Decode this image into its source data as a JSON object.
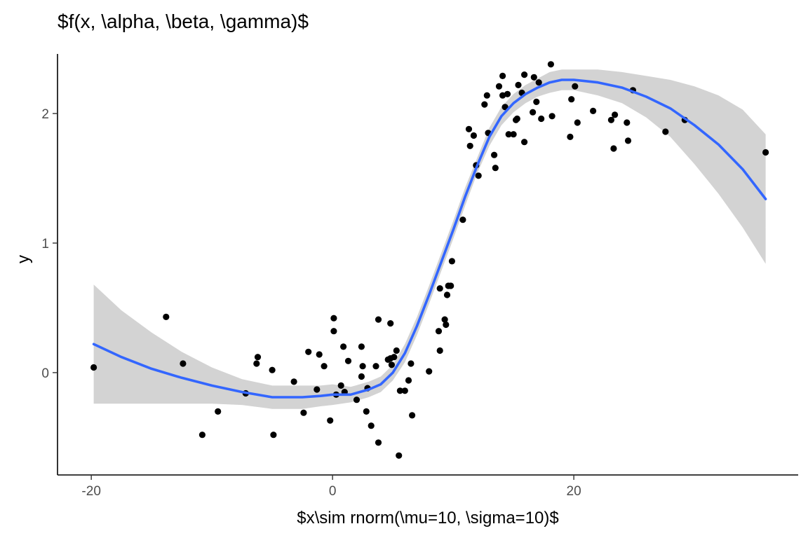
{
  "chart_data": {
    "type": "scatter",
    "title": "$f(x, \\alpha, \\beta, \\gamma)$",
    "xlabel": "$x\\sim rnorm(\\mu=10, \\sigma=10)$",
    "ylabel": "y",
    "xlim": [
      -22.8,
      38.6
    ],
    "ylim": [
      -0.79,
      2.46
    ],
    "x_ticks": [
      -20,
      0,
      20
    ],
    "y_ticks": [
      0,
      1,
      2
    ],
    "x_tick_labels": [
      "-20",
      "0",
      "20"
    ],
    "y_tick_labels": [
      "0",
      "1",
      "2"
    ],
    "grid": false,
    "legend": "none",
    "colors": {
      "points": "#000000",
      "smooth_line": "#3366FF",
      "confidence_band": "#D3D3D3",
      "axis": "#000000",
      "tick_text": "#4D4D4D"
    },
    "points": [
      [
        -19.8,
        0.04
      ],
      [
        -13.8,
        0.43
      ],
      [
        -12.4,
        0.07
      ],
      [
        -10.8,
        -0.48
      ],
      [
        -9.5,
        -0.3
      ],
      [
        -7.2,
        -0.16
      ],
      [
        -6.3,
        0.07
      ],
      [
        -6.2,
        0.12
      ],
      [
        -5.0,
        0.02
      ],
      [
        -4.9,
        -0.48
      ],
      [
        -3.2,
        -0.07
      ],
      [
        -2.4,
        -0.31
      ],
      [
        -2.0,
        0.16
      ],
      [
        -1.3,
        -0.13
      ],
      [
        -1.1,
        0.14
      ],
      [
        -0.7,
        0.05
      ],
      [
        -0.2,
        -0.37
      ],
      [
        0.1,
        0.32
      ],
      [
        0.1,
        0.42
      ],
      [
        0.3,
        -0.17
      ],
      [
        0.7,
        -0.1
      ],
      [
        0.9,
        0.2
      ],
      [
        1.0,
        -0.15
      ],
      [
        1.3,
        0.09
      ],
      [
        2.0,
        -0.21
      ],
      [
        2.4,
        0.2
      ],
      [
        2.4,
        -0.03
      ],
      [
        2.5,
        0.05
      ],
      [
        2.8,
        -0.3
      ],
      [
        2.9,
        -0.12
      ],
      [
        3.2,
        -0.41
      ],
      [
        3.6,
        0.05
      ],
      [
        3.8,
        -0.54
      ],
      [
        3.8,
        0.41
      ],
      [
        4.6,
        0.1
      ],
      [
        4.8,
        0.11
      ],
      [
        4.8,
        0.38
      ],
      [
        4.9,
        0.06
      ],
      [
        5.1,
        0.12
      ],
      [
        5.3,
        0.17
      ],
      [
        5.5,
        -0.64
      ],
      [
        5.6,
        -0.14
      ],
      [
        6.0,
        -0.14
      ],
      [
        6.3,
        -0.06
      ],
      [
        6.5,
        0.07
      ],
      [
        6.6,
        -0.33
      ],
      [
        8.0,
        0.01
      ],
      [
        8.8,
        0.32
      ],
      [
        8.9,
        0.17
      ],
      [
        8.9,
        0.65
      ],
      [
        9.3,
        0.41
      ],
      [
        9.4,
        0.37
      ],
      [
        9.5,
        0.6
      ],
      [
        9.6,
        0.67
      ],
      [
        9.8,
        0.67
      ],
      [
        9.9,
        0.86
      ],
      [
        10.8,
        1.18
      ],
      [
        11.3,
        1.88
      ],
      [
        11.4,
        1.75
      ],
      [
        11.7,
        1.83
      ],
      [
        11.9,
        1.6
      ],
      [
        12.1,
        1.52
      ],
      [
        12.6,
        2.07
      ],
      [
        12.8,
        2.14
      ],
      [
        12.9,
        1.85
      ],
      [
        13.4,
        1.68
      ],
      [
        13.5,
        1.58
      ],
      [
        13.8,
        2.21
      ],
      [
        14.1,
        2.14
      ],
      [
        14.1,
        2.29
      ],
      [
        14.3,
        2.05
      ],
      [
        14.5,
        2.15
      ],
      [
        14.6,
        1.84
      ],
      [
        15.0,
        1.84
      ],
      [
        15.2,
        1.95
      ],
      [
        15.3,
        1.96
      ],
      [
        15.4,
        2.22
      ],
      [
        15.7,
        2.16
      ],
      [
        15.9,
        1.78
      ],
      [
        15.9,
        2.3
      ],
      [
        16.6,
        2.01
      ],
      [
        16.7,
        2.28
      ],
      [
        16.9,
        2.09
      ],
      [
        17.1,
        2.24
      ],
      [
        17.3,
        1.96
      ],
      [
        18.1,
        2.38
      ],
      [
        18.2,
        1.98
      ],
      [
        19.7,
        1.82
      ],
      [
        19.8,
        2.11
      ],
      [
        20.1,
        2.21
      ],
      [
        20.3,
        1.93
      ],
      [
        21.6,
        2.02
      ],
      [
        23.1,
        1.95
      ],
      [
        23.3,
        1.73
      ],
      [
        23.4,
        1.99
      ],
      [
        24.4,
        1.93
      ],
      [
        24.5,
        1.79
      ],
      [
        24.9,
        2.18
      ],
      [
        27.6,
        1.86
      ],
      [
        29.2,
        1.95
      ],
      [
        35.9,
        1.7
      ]
    ],
    "smooth_fit": {
      "x": [
        -19.8,
        -17.5,
        -15,
        -12.5,
        -10,
        -7.5,
        -5,
        -2.5,
        -1,
        0,
        1.5,
        3,
        4,
        5,
        6,
        7,
        8,
        9,
        10,
        11,
        12,
        13,
        14,
        15,
        16,
        17,
        18,
        19,
        20,
        21,
        22,
        24,
        26,
        28,
        30,
        32,
        34,
        35.9
      ],
      "y": [
        0.22,
        0.12,
        0.03,
        -0.04,
        -0.1,
        -0.15,
        -0.19,
        -0.19,
        -0.18,
        -0.17,
        -0.17,
        -0.13,
        -0.09,
        0.0,
        0.15,
        0.36,
        0.6,
        0.85,
        1.1,
        1.36,
        1.6,
        1.82,
        1.98,
        2.08,
        2.15,
        2.2,
        2.24,
        2.26,
        2.26,
        2.25,
        2.24,
        2.2,
        2.13,
        2.04,
        1.91,
        1.76,
        1.57,
        1.34
      ]
    },
    "confidence_band": {
      "x": [
        -19.8,
        -17.5,
        -15,
        -12.5,
        -10,
        -7.5,
        -5,
        -2.5,
        -1,
        0,
        1.5,
        3,
        4,
        5,
        6,
        7,
        8,
        9,
        10,
        11,
        12,
        13,
        14,
        15,
        16,
        17,
        18,
        19,
        20,
        21,
        22,
        24,
        26,
        28,
        30,
        32,
        34,
        35.9
      ],
      "lower": [
        -0.24,
        -0.24,
        -0.24,
        -0.24,
        -0.24,
        -0.25,
        -0.28,
        -0.28,
        -0.26,
        -0.25,
        -0.23,
        -0.19,
        -0.15,
        -0.06,
        0.08,
        0.29,
        0.53,
        0.78,
        1.03,
        1.29,
        1.54,
        1.75,
        1.91,
        2.01,
        2.08,
        2.13,
        2.16,
        2.18,
        2.18,
        2.16,
        2.14,
        2.08,
        1.97,
        1.82,
        1.61,
        1.38,
        1.12,
        0.84
      ],
      "upper": [
        0.68,
        0.48,
        0.31,
        0.16,
        0.04,
        -0.05,
        -0.1,
        -0.1,
        -0.1,
        -0.09,
        -0.11,
        -0.07,
        -0.03,
        0.06,
        0.22,
        0.43,
        0.67,
        0.92,
        1.17,
        1.43,
        1.66,
        1.89,
        2.05,
        2.15,
        2.22,
        2.27,
        2.32,
        2.34,
        2.34,
        2.34,
        2.34,
        2.32,
        2.29,
        2.26,
        2.21,
        2.14,
        2.03,
        1.84
      ]
    }
  }
}
